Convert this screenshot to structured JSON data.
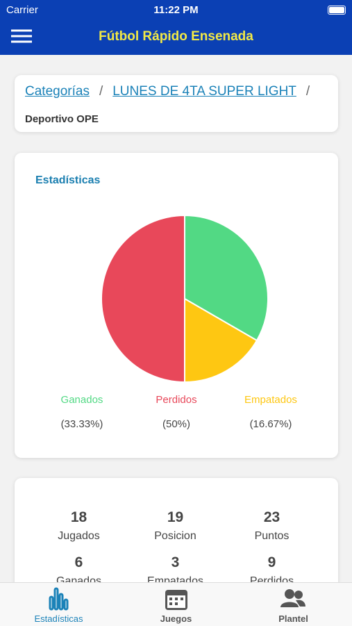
{
  "status_bar": {
    "carrier": "Carrier",
    "time": "11:22 PM"
  },
  "header": {
    "title": "Fútbol Rápido Ensenada"
  },
  "breadcrumb": {
    "items": [
      "Categorías",
      "LUNES DE 4TA SUPER LIGHT"
    ],
    "separator": "/",
    "current": "Deportivo OPE"
  },
  "chart_data": {
    "type": "pie",
    "title": "Estadísticas",
    "categories": [
      "Ganados",
      "Perdidos",
      "Empatados"
    ],
    "values": [
      33.33,
      50,
      16.67
    ],
    "value_labels": [
      "(33.33%)",
      "(50%)",
      "(16.67%)"
    ],
    "colors": [
      "#52d984",
      "#e8485a",
      "#fec712"
    ]
  },
  "stats": {
    "rows": [
      [
        {
          "value": 18,
          "label": "Jugados"
        },
        {
          "value": 19,
          "label": "Posicion"
        },
        {
          "value": 23,
          "label": "Puntos"
        }
      ],
      [
        {
          "value": 6,
          "label": "Ganados"
        },
        {
          "value": 3,
          "label": "Empatados"
        },
        {
          "value": 9,
          "label": "Perdidos"
        }
      ]
    ]
  },
  "tabs": [
    "Estadísticas",
    "Juegos",
    "Plantel"
  ]
}
